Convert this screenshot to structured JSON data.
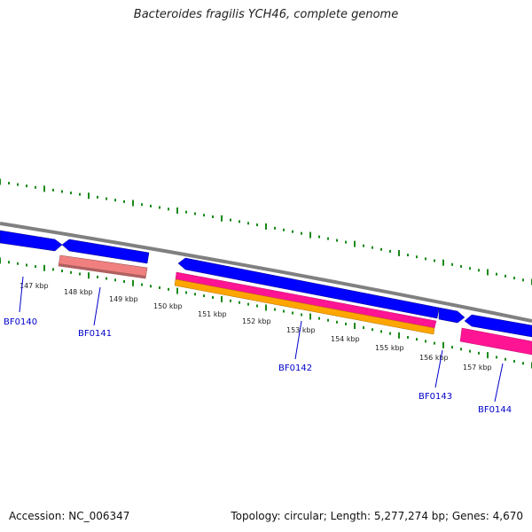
{
  "title": "Bacteroides fragilis YCH46, complete genome",
  "footer": {
    "accession": "Accession: NC_006347",
    "summary": "Topology: circular; Length: 5,277,274 bp; Genes: 4,670"
  },
  "scale_labels": [
    "147 kbp",
    "148 kbp",
    "149 kbp",
    "150 kbp",
    "151 kbp",
    "152 kbp",
    "153 kbp",
    "154 kbp",
    "155 kbp",
    "156 kbp",
    "157 kbp"
  ],
  "genes": [
    "BF0140",
    "BF0141",
    "BF0142",
    "BF0143",
    "BF0144"
  ],
  "colors": {
    "backbone": "#808080",
    "cds_track": "#0000ff",
    "rna_track": "#f08080",
    "pink_track": "#ff1493",
    "orange_track": "#ffa500",
    "ticks": "#1a8a1a",
    "gene_label": "#0000cc"
  }
}
